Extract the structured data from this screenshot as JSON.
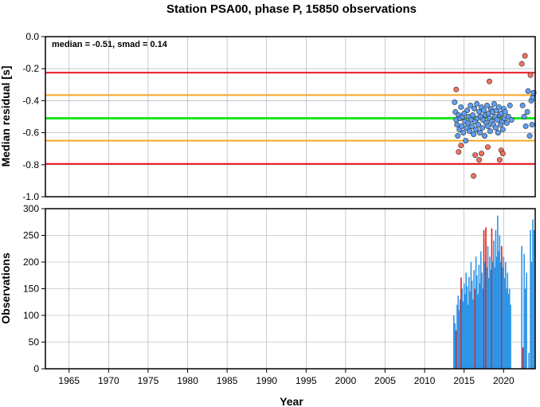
{
  "title": "Station PSA00, phase P, 15850 observations",
  "colors": {
    "red_line": "#e8141e",
    "orange_line": "#f5a623",
    "green_line": "#1ee61e",
    "blue_point": "#5f9ef0",
    "red_point": "#f07060",
    "blue_bar": "#2f95e6",
    "red_bar": "#e02020"
  },
  "chart_data": [
    {
      "type": "scatter",
      "title": "Station PSA00, phase P, 15850 observations",
      "xlabel": "",
      "ylabel": "Median residual [s]",
      "annotation": "median = -0.51, smad = 0.14",
      "xlim": [
        1962,
        2024
      ],
      "ylim": [
        -1.0,
        0.0
      ],
      "yticks": [
        "0.0",
        "-0.2",
        "-0.4",
        "-0.6",
        "-0.8",
        "-1.0"
      ],
      "grid": true,
      "reference_lines": [
        {
          "y": -0.225,
          "color": "red"
        },
        {
          "y": -0.365,
          "color": "orange"
        },
        {
          "y": -0.51,
          "color": "green"
        },
        {
          "y": -0.65,
          "color": "orange"
        },
        {
          "y": -0.795,
          "color": "red"
        }
      ],
      "series": [
        {
          "points": [
            [
              2013.8,
              -0.41
            ],
            [
              2013.9,
              -0.47
            ],
            [
              2014.0,
              -0.52
            ],
            [
              2014.1,
              -0.55
            ],
            [
              2014.2,
              -0.62
            ],
            [
              2014.3,
              -0.49
            ],
            [
              2014.4,
              -0.58
            ],
            [
              2014.5,
              -0.51
            ],
            [
              2014.6,
              -0.44
            ],
            [
              2014.7,
              -0.56
            ],
            [
              2014.8,
              -0.5
            ],
            [
              2014.9,
              -0.6
            ],
            [
              2015.0,
              -0.48
            ],
            [
              2015.1,
              -0.53
            ],
            [
              2015.2,
              -0.65
            ],
            [
              2015.3,
              -0.57
            ],
            [
              2015.4,
              -0.46
            ],
            [
              2015.5,
              -0.54
            ],
            [
              2015.6,
              -0.5
            ],
            [
              2015.7,
              -0.59
            ],
            [
              2015.8,
              -0.43
            ],
            [
              2015.9,
              -0.52
            ],
            [
              2016.0,
              -0.56
            ],
            [
              2016.1,
              -0.49
            ],
            [
              2016.2,
              -0.61
            ],
            [
              2016.3,
              -0.45
            ],
            [
              2016.4,
              -0.53
            ],
            [
              2016.5,
              -0.58
            ],
            [
              2016.6,
              -0.42
            ],
            [
              2016.7,
              -0.51
            ],
            [
              2016.8,
              -0.55
            ],
            [
              2016.9,
              -0.47
            ],
            [
              2017.0,
              -0.6
            ],
            [
              2017.1,
              -0.5
            ],
            [
              2017.2,
              -0.44
            ],
            [
              2017.3,
              -0.57
            ],
            [
              2017.4,
              -0.52
            ],
            [
              2017.5,
              -0.46
            ],
            [
              2017.6,
              -0.62
            ],
            [
              2017.7,
              -0.49
            ],
            [
              2017.8,
              -0.54
            ],
            [
              2017.9,
              -0.43
            ],
            [
              2018.0,
              -0.56
            ],
            [
              2018.1,
              -0.48
            ],
            [
              2018.2,
              -0.51
            ],
            [
              2018.3,
              -0.59
            ],
            [
              2018.4,
              -0.45
            ],
            [
              2018.5,
              -0.53
            ],
            [
              2018.6,
              -0.47
            ],
            [
              2018.7,
              -0.55
            ],
            [
              2018.8,
              -0.42
            ],
            [
              2018.9,
              -0.5
            ],
            [
              2019.0,
              -0.57
            ],
            [
              2019.1,
              -0.46
            ],
            [
              2019.2,
              -0.52
            ],
            [
              2019.3,
              -0.6
            ],
            [
              2019.4,
              -0.44
            ],
            [
              2019.5,
              -0.49
            ],
            [
              2019.6,
              -0.55
            ],
            [
              2019.7,
              -0.48
            ],
            [
              2019.8,
              -0.53
            ],
            [
              2019.9,
              -0.58
            ],
            [
              2020.0,
              -0.45
            ],
            [
              2020.1,
              -0.51
            ],
            [
              2020.2,
              -0.47
            ],
            [
              2020.4,
              -0.54
            ],
            [
              2020.6,
              -0.5
            ],
            [
              2020.8,
              -0.43
            ],
            [
              2021.0,
              -0.52
            ],
            [
              2022.4,
              -0.43
            ],
            [
              2022.6,
              -0.5
            ],
            [
              2022.8,
              -0.56
            ],
            [
              2023.0,
              -0.47
            ],
            [
              2023.1,
              -0.34
            ],
            [
              2023.3,
              -0.62
            ],
            [
              2023.5,
              -0.4
            ],
            [
              2023.6,
              -0.55
            ],
            [
              2023.7,
              -0.38
            ],
            [
              2023.8,
              -0.35
            ]
          ]
        },
        {
          "points": [
            [
              2014.0,
              -0.33
            ],
            [
              2014.3,
              -0.72
            ],
            [
              2014.6,
              -0.68
            ],
            [
              2016.2,
              -0.87
            ],
            [
              2016.4,
              -0.74
            ],
            [
              2016.9,
              -0.77
            ],
            [
              2017.2,
              -0.73
            ],
            [
              2018.0,
              -0.69
            ],
            [
              2018.2,
              -0.28
            ],
            [
              2019.5,
              -0.77
            ],
            [
              2019.7,
              -0.71
            ],
            [
              2019.9,
              -0.73
            ],
            [
              2022.3,
              -0.17
            ],
            [
              2022.7,
              -0.12
            ],
            [
              2023.4,
              -0.24
            ]
          ]
        }
      ]
    },
    {
      "type": "bar",
      "xlabel": "Year",
      "ylabel": "Observations",
      "xlim": [
        1962,
        2024
      ],
      "ylim": [
        0,
        300
      ],
      "xticks": [
        "1965",
        "1970",
        "1975",
        "1980",
        "1985",
        "1990",
        "1995",
        "2000",
        "2005",
        "2010",
        "2015",
        "2020"
      ],
      "yticks": [
        "0",
        "50",
        "100",
        "150",
        "200",
        "250",
        "300"
      ],
      "grid": true,
      "bars": [
        [
          2013.7,
          100,
          0
        ],
        [
          2013.85,
          85,
          0
        ],
        [
          2014.0,
          72,
          1
        ],
        [
          2014.12,
          120,
          0
        ],
        [
          2014.25,
          137,
          0
        ],
        [
          2014.38,
          110,
          0
        ],
        [
          2014.5,
          130,
          0
        ],
        [
          2014.62,
          171,
          1
        ],
        [
          2014.75,
          150,
          0
        ],
        [
          2014.88,
          126,
          0
        ],
        [
          2015.0,
          160,
          0
        ],
        [
          2015.12,
          140,
          0
        ],
        [
          2015.25,
          180,
          0
        ],
        [
          2015.38,
          155,
          0
        ],
        [
          2015.5,
          120,
          0
        ],
        [
          2015.62,
          172,
          0
        ],
        [
          2015.75,
          145,
          0
        ],
        [
          2015.88,
          200,
          0
        ],
        [
          2016.0,
          165,
          0
        ],
        [
          2016.12,
          130,
          0
        ],
        [
          2016.25,
          185,
          0
        ],
        [
          2016.38,
          150,
          1
        ],
        [
          2016.5,
          210,
          0
        ],
        [
          2016.62,
          175,
          0
        ],
        [
          2016.75,
          140,
          0
        ],
        [
          2016.88,
          195,
          0
        ],
        [
          2017.0,
          160,
          0
        ],
        [
          2017.12,
          220,
          0
        ],
        [
          2017.25,
          180,
          0
        ],
        [
          2017.38,
          150,
          0
        ],
        [
          2017.5,
          260,
          1
        ],
        [
          2017.62,
          200,
          0
        ],
        [
          2017.75,
          265,
          1
        ],
        [
          2017.88,
          190,
          0
        ],
        [
          2018.0,
          230,
          0
        ],
        [
          2018.12,
          170,
          0
        ],
        [
          2018.25,
          210,
          0
        ],
        [
          2018.38,
          185,
          0
        ],
        [
          2018.5,
          263,
          1
        ],
        [
          2018.62,
          200,
          0
        ],
        [
          2018.75,
          240,
          0
        ],
        [
          2018.88,
          190,
          0
        ],
        [
          2019.0,
          260,
          0
        ],
        [
          2019.12,
          210,
          0
        ],
        [
          2019.25,
          287,
          0
        ],
        [
          2019.38,
          220,
          0
        ],
        [
          2019.5,
          250,
          0
        ],
        [
          2019.62,
          200,
          0
        ],
        [
          2019.75,
          230,
          1
        ],
        [
          2019.88,
          190,
          0
        ],
        [
          2020.0,
          210,
          0
        ],
        [
          2020.12,
          170,
          0
        ],
        [
          2020.25,
          200,
          0
        ],
        [
          2020.38,
          150,
          0
        ],
        [
          2020.5,
          180,
          0
        ],
        [
          2020.62,
          140,
          0
        ],
        [
          2020.75,
          150,
          0
        ],
        [
          2020.88,
          120,
          0
        ],
        [
          2022.3,
          230,
          0
        ],
        [
          2022.45,
          40,
          1
        ],
        [
          2022.6,
          215,
          0
        ],
        [
          2022.75,
          150,
          0
        ],
        [
          2022.9,
          180,
          0
        ],
        [
          2023.2,
          30,
          0
        ],
        [
          2023.4,
          260,
          0
        ],
        [
          2023.55,
          200,
          0
        ],
        [
          2023.7,
          280,
          0
        ],
        [
          2023.85,
          260,
          0
        ]
      ]
    }
  ]
}
